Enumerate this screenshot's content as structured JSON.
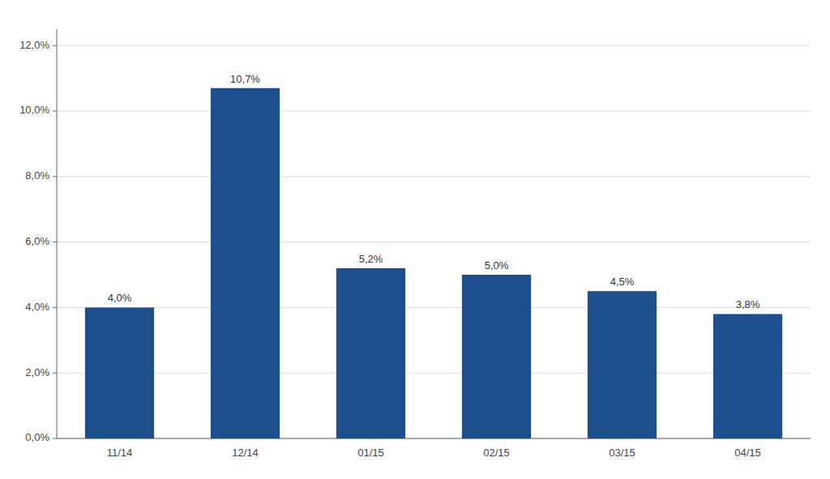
{
  "chart_data": {
    "type": "bar",
    "categories": [
      "11/14",
      "12/14",
      "01/15",
      "02/15",
      "03/15",
      "04/15"
    ],
    "values": [
      4.0,
      10.7,
      5.2,
      5.0,
      4.5,
      3.8
    ],
    "value_labels": [
      "4,0%",
      "10,7%",
      "5,2%",
      "5,0%",
      "4,5%",
      "3,8%"
    ],
    "data_labels": true,
    "color": "#1F4E8C",
    "ylim": [
      0,
      12.5
    ],
    "yticks": [
      {
        "value": 0.0,
        "label": "0,0%"
      },
      {
        "value": 2.0,
        "label": "2,0%"
      },
      {
        "value": 4.0,
        "label": "4,0%"
      },
      {
        "value": 6.0,
        "label": "6,0%"
      },
      {
        "value": 8.0,
        "label": "8,0%"
      },
      {
        "value": 10.0,
        "label": "10,0%"
      },
      {
        "value": 12.0,
        "label": "12,0%"
      }
    ],
    "grid": true
  }
}
